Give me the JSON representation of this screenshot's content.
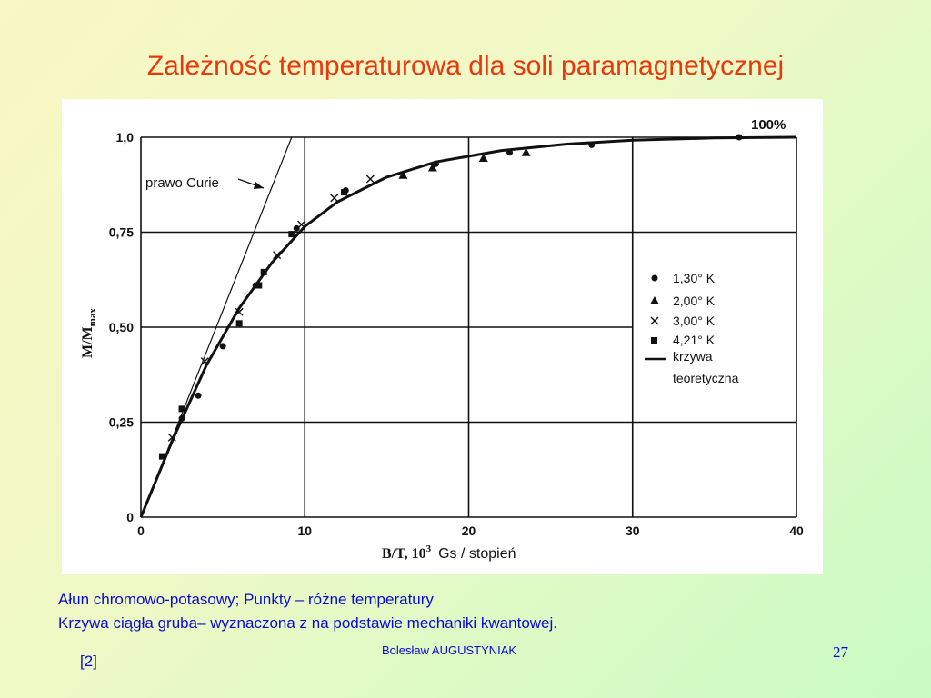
{
  "slide": {
    "title": "Zależność temperaturowa dla soli paramagnetycznej",
    "caption_line1": "Ałun chromowo-potasowy; Punkty – różne temperatury",
    "caption_line2": "Krzywa ciągła gruba– wyznaczona z na podstawie mechaniki kwantowej.",
    "author": "Bolesław AUGUSTYNIAK",
    "reference": "[2]",
    "page_number": "27"
  },
  "chart_data": {
    "type": "scatter",
    "xlabel_main": "B/T, 10",
    "xlabel_exp": "3",
    "xlabel_unit": "Gs / stopień",
    "ylabel_main": "M/M",
    "ylabel_sub": "max",
    "xlim": [
      0,
      40
    ],
    "ylim": [
      0,
      1.0
    ],
    "grid": true,
    "x_ticks": [
      0,
      10,
      20,
      30,
      40
    ],
    "x_tick_labels": [
      "0",
      "10",
      "20",
      "30",
      "40"
    ],
    "y_ticks": [
      0,
      0.25,
      0.5,
      0.75,
      1.0
    ],
    "y_tick_labels": [
      "0",
      "0,25",
      "0,50",
      "0,75",
      "1,0"
    ],
    "annotation_curie": "prawo Curie",
    "annotation_100": "100%",
    "legend_position": "right",
    "series": [
      {
        "name": "1,30° K",
        "marker": "circle",
        "x": [
          2.5,
          3.5,
          5,
          7,
          9.5,
          12.5,
          18,
          22.5,
          27.5,
          36.5
        ],
        "y": [
          0.26,
          0.32,
          0.45,
          0.61,
          0.76,
          0.86,
          0.93,
          0.96,
          0.98,
          1.0
        ]
      },
      {
        "name": "2,00° K",
        "marker": "triangle",
        "x": [
          16,
          17.8,
          20.9,
          23.5
        ],
        "y": [
          0.9,
          0.92,
          0.945,
          0.96
        ]
      },
      {
        "name": "3,00° K",
        "marker": "cross",
        "x": [
          1.9,
          3.9,
          6,
          8.3,
          9.8,
          11.8,
          14
        ],
        "y": [
          0.21,
          0.41,
          0.54,
          0.69,
          0.77,
          0.84,
          0.89
        ]
      },
      {
        "name": "4,21° K",
        "marker": "square",
        "x": [
          1.3,
          2.5,
          6,
          7.2,
          7.5,
          9.2,
          12.4
        ],
        "y": [
          0.16,
          0.285,
          0.51,
          0.61,
          0.645,
          0.745,
          0.855
        ]
      }
    ],
    "curve_name_line1": "krzywa",
    "curve_name_line2": "teoretyczna",
    "theory_curve": {
      "x": [
        0,
        2,
        4,
        6,
        8,
        10,
        12,
        15,
        18,
        22,
        26,
        30,
        35,
        40
      ],
      "y": [
        0,
        0.21,
        0.4,
        0.55,
        0.67,
        0.765,
        0.83,
        0.895,
        0.935,
        0.965,
        0.982,
        0.992,
        0.998,
        1.0
      ]
    },
    "curie_line": {
      "x": [
        0,
        9.2
      ],
      "y": [
        0,
        1.0
      ]
    }
  }
}
